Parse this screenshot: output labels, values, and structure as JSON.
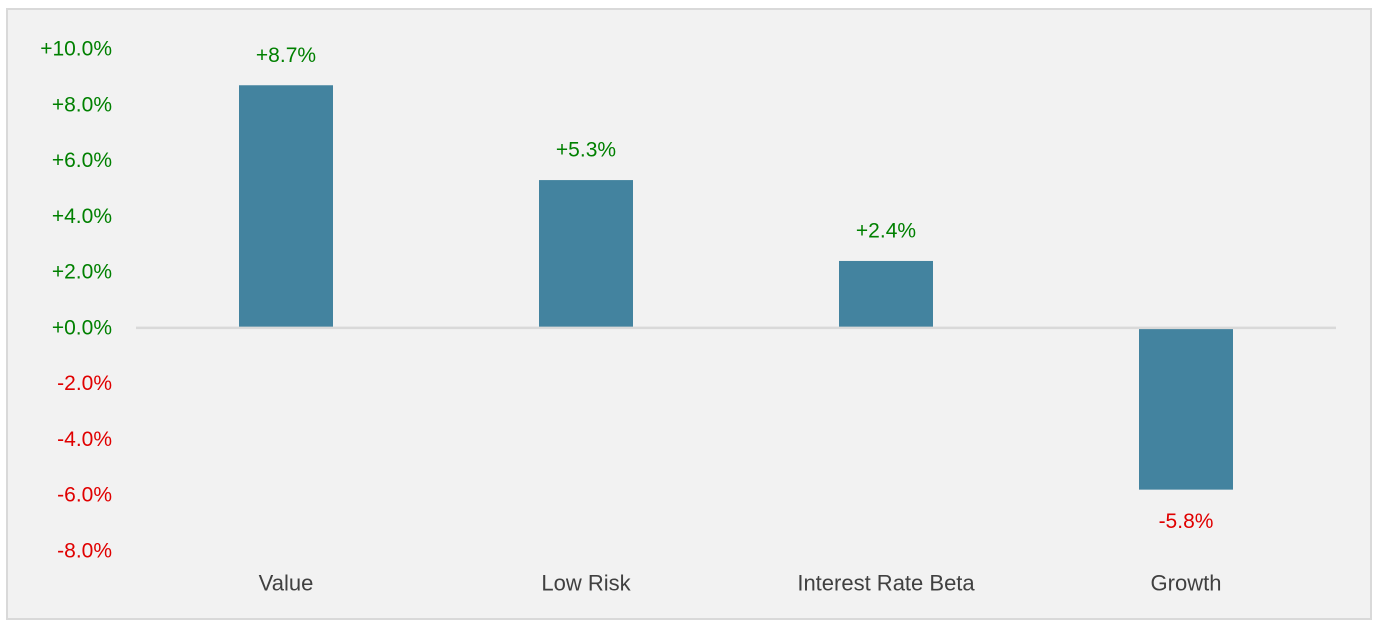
{
  "chart_data": {
    "type": "bar",
    "categories": [
      "Value",
      "Low Risk",
      "Interest Rate Beta",
      "Growth"
    ],
    "values": [
      8.7,
      5.3,
      2.4,
      -5.8
    ],
    "data_labels": [
      "+8.7%",
      "+5.3%",
      "+2.4%",
      "-5.8%"
    ],
    "y_ticks": [
      10,
      8,
      6,
      4,
      2,
      0,
      -2,
      -4,
      -6,
      -8
    ],
    "y_tick_labels": [
      "+10.0%",
      "+8.0%",
      "+6.0%",
      "+4.0%",
      "+2.0%",
      "+0.0%",
      "-2.0%",
      "-4.0%",
      "-6.0%",
      "-8.0%"
    ],
    "ylim": [
      -8,
      10
    ],
    "title": "",
    "xlabel": "",
    "ylabel": "",
    "grid": false,
    "legend": "none",
    "colors": {
      "bar": "#43839f",
      "positive_text": "#008000",
      "negative_text": "#e00000",
      "zero_line": "#d9d9d9",
      "background": "#f2f2f2"
    }
  }
}
